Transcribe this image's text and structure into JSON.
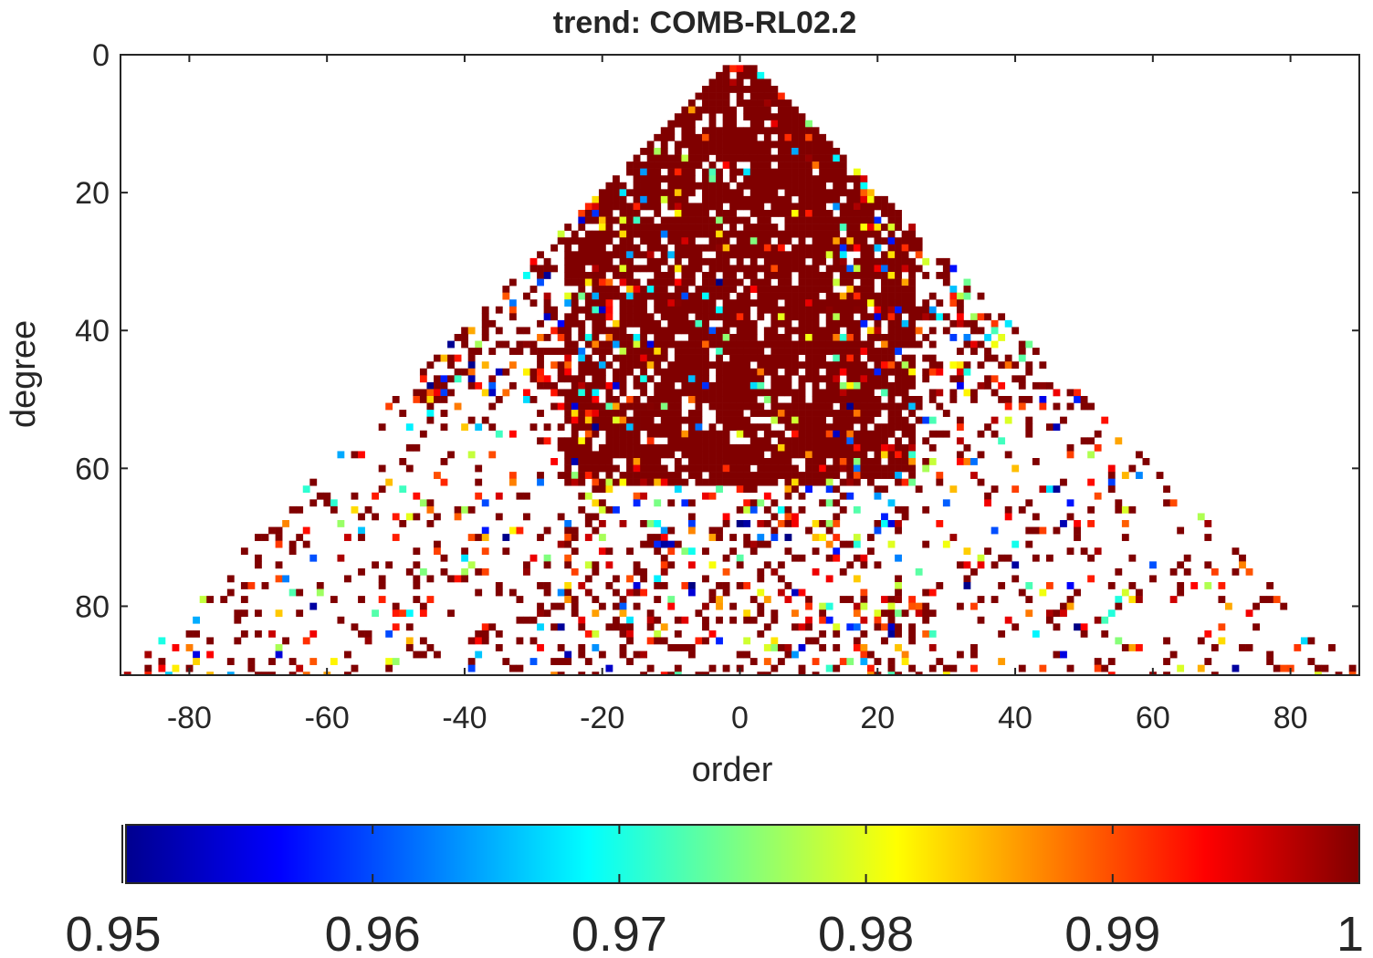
{
  "chart_data": {
    "type": "heatmap",
    "title": "trend: COMB-RL02.2",
    "xlabel": "order",
    "ylabel": "degree",
    "xlim": [
      -90,
      90
    ],
    "ylim": [
      0,
      90
    ],
    "y_reversed": true,
    "xticks": [
      -80,
      -60,
      -40,
      -20,
      0,
      20,
      40,
      60,
      80
    ],
    "yticks": [
      0,
      20,
      40,
      60,
      80
    ],
    "colormap": "jet",
    "colorbar": {
      "orientation": "horizontal",
      "placement": "bottom",
      "clim": [
        0.95,
        1.0
      ],
      "ticks": [
        0.95,
        0.96,
        0.97,
        0.98,
        0.99,
        1.0
      ],
      "tick_labels": [
        "0.95",
        "0.96",
        "0.97",
        "0.98",
        "0.99",
        "1"
      ]
    },
    "grid": false,
    "description_cells": {
      "value_range": [
        0.95,
        1.0
      ],
      "dense_core_value": 1.0,
      "dense_core_region": "triangle |order| <= degree for degree <= ~62, |order| <= ~25",
      "sparse_region": "scattered cells out to |order| ~ 87 at degree 70-90"
    }
  }
}
